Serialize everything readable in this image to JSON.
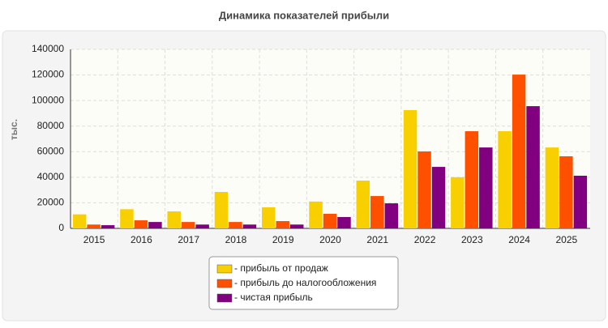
{
  "chart_data": {
    "type": "bar",
    "title": "Динамика показателей прибыли",
    "y_label": "тыс.",
    "categories": [
      "2015",
      "2016",
      "2017",
      "2018",
      "2019",
      "2020",
      "2021",
      "2022",
      "2023",
      "2024",
      "2025"
    ],
    "series": [
      {
        "name": "- прибыль от продаж",
        "color": "#f8d000",
        "values": [
          11000,
          15000,
          13300,
          28500,
          16500,
          21000,
          37400,
          92500,
          40000,
          76000,
          63300
        ]
      },
      {
        "name": "- прибыль до налогообложения",
        "color": "#ff5000",
        "values": [
          3000,
          6300,
          5000,
          5000,
          5700,
          11400,
          25300,
          60200,
          76000,
          120300,
          56400
        ]
      },
      {
        "name": "- чистая прибыль",
        "color": "#800080",
        "values": [
          2500,
          5000,
          3000,
          3000,
          3000,
          8900,
          19600,
          48100,
          63300,
          95600,
          41200
        ]
      }
    ],
    "ylim": [
      0,
      140000
    ],
    "yticks": [
      0,
      20000,
      40000,
      60000,
      80000,
      100000,
      120000,
      140000
    ],
    "grid": true
  }
}
